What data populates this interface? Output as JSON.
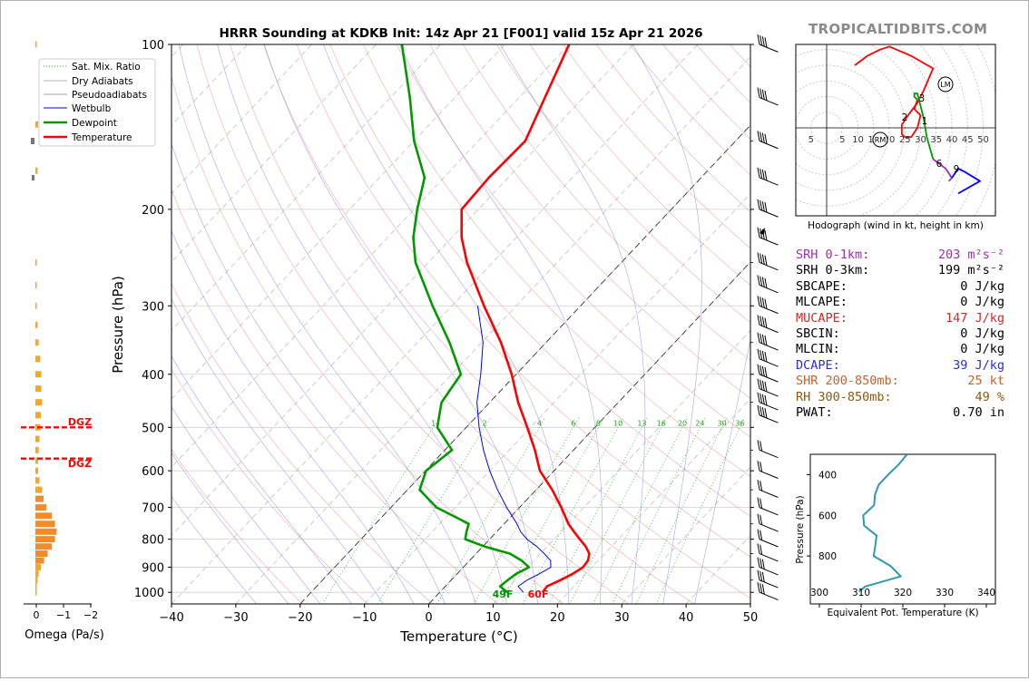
{
  "title": "HRRR Sounding at KDKB Init: 14z Apr 21 [F001] valid 15z Apr 21 2026",
  "watermark": "TROPICALTIDBITS.COM",
  "axes": {
    "xlabel": "Temperature (°C)",
    "ylabel": "Pressure (hPa)",
    "omega_label": "Omega (Pa/s)",
    "dgz": "DGZ"
  },
  "legend": [
    "Sat. Mix. Ratio",
    "Dry Adiabats",
    "Pseudoadiabats",
    "Wetbulb",
    "Dewpoint",
    "Temperature"
  ],
  "surface": {
    "dewpoint": "49F",
    "temperature": "60F"
  },
  "hodograph": {
    "caption": "Hodograph (wind in kt, height in km)",
    "ring_labels": [
      "5",
      "5",
      "10",
      "15",
      "20",
      "25",
      "30",
      "35",
      "40",
      "45",
      "50"
    ],
    "height_labels": [
      "1",
      "2",
      "3",
      "6",
      "9"
    ],
    "markers": [
      "LM",
      "RM"
    ]
  },
  "params": [
    {
      "label": "SRH 0-1km:",
      "value": "203 m²s⁻²",
      "color": "#9b2fae"
    },
    {
      "label": "SRH 0-3km:",
      "value": "199 m²s⁻²",
      "color": "#000000"
    },
    {
      "label": "SBCAPE:",
      "value": "0 J/kg",
      "color": "#000000"
    },
    {
      "label": "MLCAPE:",
      "value": "0 J/kg",
      "color": "#000000"
    },
    {
      "label": "MUCAPE:",
      "value": "147 J/kg",
      "color": "#d62728"
    },
    {
      "label": "SBCIN:",
      "value": "0 J/kg",
      "color": "#000000"
    },
    {
      "label": "MLCIN:",
      "value": "0 J/kg",
      "color": "#000000"
    },
    {
      "label": "DCAPE:",
      "value": "39 J/kg",
      "color": "#2c2ccf"
    },
    {
      "label": "SHR 200-850mb:",
      "value": "25 kt",
      "color": "#c8602a"
    },
    {
      "label": "RH 300-850mb:",
      "value": "49 %",
      "color": "#8a5a12"
    },
    {
      "label": "PWAT:",
      "value": "0.70 in",
      "color": "#000000"
    }
  ],
  "colors": {
    "temperature": "#ff0000",
    "dewpoint": "#009900",
    "wetbulb": "#0000ff",
    "theta_e": "#2b9aad",
    "omega_bar": "#f5a623",
    "omega_bar_strong": "#f28c28"
  },
  "chart_data": [
    {
      "type": "line",
      "title": "HRRR Sounding at KDKB Init: 14z Apr 21 [F001] valid 15z Apr 21 2026",
      "xlabel": "Temperature (°C)",
      "ylabel": "Pressure (hPa)",
      "xlim": [
        -40,
        50
      ],
      "ylim": [
        1050,
        100
      ],
      "y_scale": "log",
      "skew": true,
      "x_ticks": [
        -40,
        -30,
        -20,
        -10,
        0,
        10,
        20,
        30,
        40,
        50
      ],
      "y_ticks": [
        100,
        200,
        300,
        400,
        500,
        600,
        700,
        800,
        900,
        1000
      ],
      "mixing_ratio_labels": [
        "1",
        "2",
        "4",
        "6",
        "8",
        "10",
        "13",
        "16",
        "20",
        "24",
        "30",
        "36"
      ],
      "legend_position": "upper-left",
      "series": [
        {
          "name": "Temperature",
          "pressure": [
            1000,
            975,
            950,
            925,
            900,
            875,
            850,
            825,
            800,
            775,
            750,
            700,
            650,
            600,
            550,
            500,
            450,
            400,
            350,
            300,
            250,
            225,
            200,
            175,
            150,
            125,
            100
          ],
          "values": [
            16,
            15.8,
            17,
            18,
            18.6,
            18.4,
            17.6,
            16,
            14,
            12,
            10,
            6.5,
            2.5,
            -2.2,
            -6,
            -10.5,
            -15.6,
            -20.7,
            -27,
            -35,
            -44,
            -48.5,
            -52.6,
            -53,
            -52.7,
            -56,
            -60
          ]
        },
        {
          "name": "Dewpoint",
          "pressure": [
            1000,
            975,
            950,
            925,
            900,
            875,
            850,
            825,
            800,
            775,
            750,
            700,
            650,
            600,
            550,
            500,
            450,
            400,
            350,
            300,
            250,
            225,
            200,
            175,
            150,
            125,
            100
          ],
          "values": [
            10.5,
            8.5,
            8.8,
            9.2,
            10.2,
            8.1,
            5.3,
            0.3,
            -3.8,
            -4.7,
            -5.5,
            -12.9,
            -18.1,
            -19.9,
            -18.9,
            -24.5,
            -27.5,
            -28.6,
            -35,
            -43,
            -52,
            -56,
            -59.5,
            -63,
            -70,
            -77,
            -86
          ]
        },
        {
          "name": "Wetbulb",
          "pressure": [
            1000,
            975,
            950,
            925,
            900,
            875,
            850,
            825,
            800,
            775,
            750,
            700,
            650,
            600,
            550,
            500,
            450,
            400,
            350,
            300
          ],
          "values": [
            13,
            11.3,
            11.8,
            12.8,
            13.6,
            12.6,
            10.6,
            8.4,
            5.8,
            3.7,
            2,
            -2,
            -6,
            -10,
            -14,
            -18,
            -22,
            -25.5,
            -29.8,
            -36
          ]
        }
      ],
      "wind_barbs_units": "kt"
    },
    {
      "type": "bar",
      "title": "",
      "xlabel": "Omega (Pa/s)",
      "xlim": [
        0,
        -2
      ],
      "x_ticks": [
        0,
        -1,
        -2
      ],
      "orientation": "horizontal",
      "dgz_pressures": [
        500,
        570
      ],
      "pressure": [
        100,
        140,
        170,
        250,
        275,
        300,
        325,
        350,
        375,
        400,
        425,
        450,
        475,
        500,
        525,
        550,
        575,
        600,
        625,
        650,
        675,
        700,
        725,
        750,
        775,
        800,
        825,
        850,
        875,
        900,
        925,
        950,
        975,
        1000
      ],
      "values": [
        -0.02,
        -0.1,
        -0.08,
        -0.02,
        -0.02,
        -0.05,
        -0.08,
        -0.12,
        -0.18,
        -0.22,
        -0.22,
        -0.25,
        -0.2,
        -0.18,
        -0.15,
        -0.12,
        -0.1,
        -0.1,
        -0.15,
        -0.25,
        -0.3,
        -0.4,
        -0.6,
        -0.72,
        -0.78,
        -0.72,
        -0.6,
        -0.45,
        -0.32,
        -0.2,
        -0.12,
        -0.08,
        -0.05,
        -0.02
      ]
    },
    {
      "type": "line",
      "title": "",
      "xlabel": "Equivalent Pot. Temperature (K)",
      "ylabel": "Pressure (hPa)",
      "xlim": [
        300,
        340
      ],
      "ylim": [
        1000,
        300
      ],
      "x_ticks": [
        300,
        310,
        320,
        330,
        340
      ],
      "y_ticks": [
        400,
        600,
        800
      ],
      "series": [
        {
          "name": "",
          "pressure": [
            300,
            350,
            400,
            450,
            500,
            550,
            600,
            650,
            700,
            750,
            800,
            850,
            900,
            950,
            975
          ],
          "values": [
            321,
            319,
            316.5,
            314.2,
            313.3,
            313.1,
            310.5,
            310.7,
            313.7,
            313.4,
            313,
            317.1,
            319.5,
            311,
            309.5
          ]
        }
      ]
    },
    {
      "type": "line",
      "title": "Hodograph (wind in kt, height in km)",
      "xlim": [
        -10,
        55
      ],
      "ylim": [
        -30,
        30
      ],
      "series": [
        {
          "name": "",
          "u": [
            25,
            26,
            27,
            29,
            28,
            27,
            30,
            33,
            34,
            33,
            29,
            26,
            21,
            17,
            12,
            9
          ],
          "v": [
            -3,
            3,
            8,
            10,
            12,
            13,
            16,
            20,
            26,
            28,
            30,
            31,
            32,
            30,
            27,
            25
          ]
        }
      ]
    }
  ]
}
